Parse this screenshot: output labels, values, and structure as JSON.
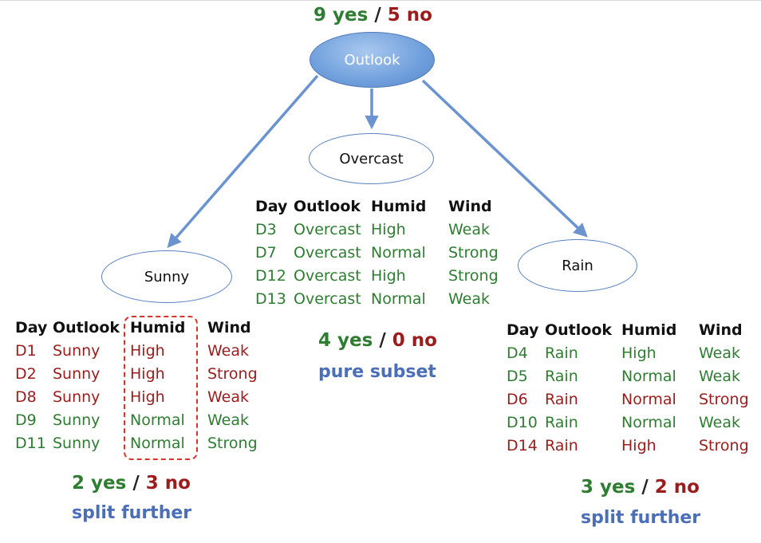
{
  "root": {
    "label": "Outlook",
    "yes": "9 yes",
    "sep": "/",
    "no": "5 no"
  },
  "branches": {
    "sunny": {
      "label": "Sunny",
      "columns": [
        "Day",
        "Outlook",
        "Humid",
        "Wind"
      ],
      "rows": [
        {
          "day": "D1",
          "outlook": "Sunny",
          "humid": "High",
          "wind": "Weak",
          "label": "no"
        },
        {
          "day": "D2",
          "outlook": "Sunny",
          "humid": "High",
          "wind": "Strong",
          "label": "no"
        },
        {
          "day": "D8",
          "outlook": "Sunny",
          "humid": "High",
          "wind": "Weak",
          "label": "no"
        },
        {
          "day": "D9",
          "outlook": "Sunny",
          "humid": "Normal",
          "wind": "Weak",
          "label": "yes"
        },
        {
          "day": "D11",
          "outlook": "Sunny",
          "humid": "Normal",
          "wind": "Strong",
          "label": "yes"
        }
      ],
      "yes": "2 yes",
      "sep": "/",
      "no": "3 no",
      "note": "split further"
    },
    "overcast": {
      "label": "Overcast",
      "columns": [
        "Day",
        "Outlook",
        "Humid",
        "Wind"
      ],
      "rows": [
        {
          "day": "D3",
          "outlook": "Overcast",
          "humid": "High",
          "wind": "Weak",
          "label": "yes"
        },
        {
          "day": "D7",
          "outlook": "Overcast",
          "humid": "Normal",
          "wind": "Strong",
          "label": "yes"
        },
        {
          "day": "D12",
          "outlook": "Overcast",
          "humid": "High",
          "wind": "Strong",
          "label": "yes"
        },
        {
          "day": "D13",
          "outlook": "Overcast",
          "humid": "Normal",
          "wind": "Weak",
          "label": "yes"
        }
      ],
      "yes": "4 yes",
      "sep": "/",
      "no": "0 no",
      "note": "pure subset"
    },
    "rain": {
      "label": "Rain",
      "columns": [
        "Day",
        "Outlook",
        "Humid",
        "Wind"
      ],
      "rows": [
        {
          "day": "D4",
          "outlook": "Rain",
          "humid": "High",
          "wind": "Weak",
          "label": "yes"
        },
        {
          "day": "D5",
          "outlook": "Rain",
          "humid": "Normal",
          "wind": "Weak",
          "label": "yes"
        },
        {
          "day": "D6",
          "outlook": "Rain",
          "humid": "Normal",
          "wind": "Strong",
          "label": "no"
        },
        {
          "day": "D10",
          "outlook": "Rain",
          "humid": "Normal",
          "wind": "Weak",
          "label": "yes"
        },
        {
          "day": "D14",
          "outlook": "Rain",
          "humid": "High",
          "wind": "Strong",
          "label": "no"
        }
      ],
      "yes": "3 yes",
      "sep": "/",
      "no": "2 no",
      "note": "split further"
    }
  },
  "colors": {
    "yes": "#2e7d32",
    "no": "#9b1c1c",
    "note": "#4a6fb8",
    "edge": "#6a93cf",
    "highlight": "#d9342b"
  }
}
